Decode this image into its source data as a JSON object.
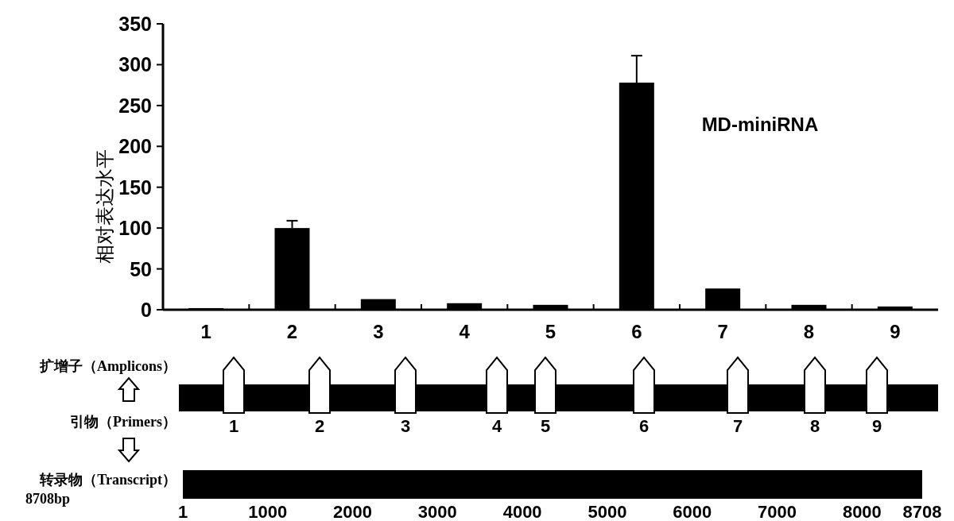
{
  "chart_data": [
    {
      "type": "bar",
      "ylabel": "相对表达水平",
      "categories": [
        "1",
        "2",
        "3",
        "4",
        "5",
        "6",
        "7",
        "8",
        "9"
      ],
      "values": [
        2,
        100,
        13,
        8,
        6,
        278,
        26,
        6,
        4
      ],
      "errors": [
        null,
        9,
        null,
        null,
        null,
        33,
        null,
        null,
        null
      ],
      "color": "#000000",
      "ylim": [
        0,
        350
      ],
      "yticks": [
        0,
        50,
        100,
        150,
        200,
        250,
        300,
        350
      ],
      "annotations": [
        "MD-miniRNA"
      ]
    },
    {
      "type": "bar",
      "orientation": "horizontal",
      "categories": [
        "转录物（Transcript）"
      ],
      "base": [
        1
      ],
      "values": [
        8707
      ],
      "color": "#000000",
      "xlim": [
        1,
        8708
      ],
      "xticks": [
        1,
        1000,
        2000,
        3000,
        4000,
        5000,
        6000,
        7000,
        8000,
        8708
      ],
      "annotations": [
        "扩增子（Amplicons）",
        "引物（Primers）",
        "8708bp",
        "1",
        "2",
        "3",
        "4",
        "5",
        "6",
        "7",
        "8",
        "9"
      ]
    }
  ]
}
